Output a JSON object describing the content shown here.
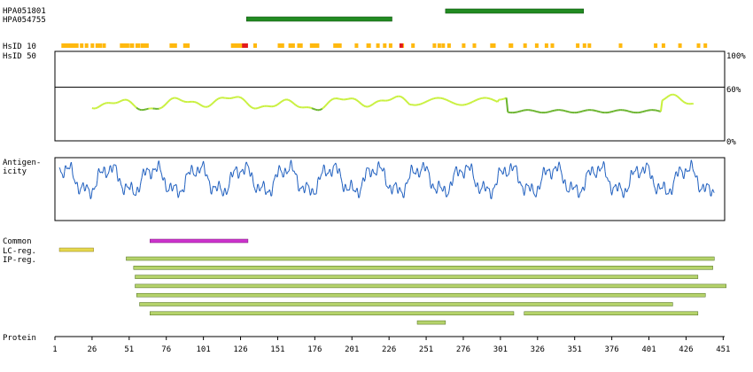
{
  "antibodies": [
    {
      "label": "HPA051801",
      "start": 264,
      "end": 357,
      "color": "#228b22"
    },
    {
      "label": "HPA054755",
      "start": 130,
      "end": 228,
      "color": "#228b22"
    }
  ],
  "hsid": {
    "label_10": "HsID 10",
    "label_50": "HsID 50",
    "ticks": [
      3,
      6,
      7,
      9,
      11,
      13,
      14,
      17,
      22,
      27,
      33,
      38,
      41,
      45,
      63,
      64,
      66,
      69,
      73,
      74,
      79,
      80,
      84,
      86,
      89,
      114,
      115,
      117,
      118,
      128,
      129,
      130,
      131,
      177,
      180,
      181,
      182,
      183,
      184,
      185,
      200,
      225,
      227,
      228,
      236,
      237,
      238,
      239,
      245,
      246,
      247,
      258,
      259,
      262,
      264,
      282,
      285,
      287,
      304,
      316,
      317,
      326,
      333,
      339,
      351,
      362,
      384,
      389,
      393,
      399,
      414,
      425,
      443,
      444,
      445,
      462,
      463,
      477,
      489,
      499,
      505,
      531,
      538,
      543,
      575,
      611,
      619,
      636,
      655,
      662
    ],
    "orange": "#ffb90f",
    "red": "#e31a1c",
    "red_ranges": [
      [
        127,
        131
      ],
      [
        233,
        235
      ]
    ]
  },
  "similarity": {
    "label_top": "100%",
    "label_mid": "60%",
    "label_bottom": "0%",
    "threshold_pct": 60,
    "range": [
      26,
      431
    ],
    "light_color": "#c8f03c",
    "dark_color": "#6ab42d"
  },
  "antigenicity": {
    "label_line1": "Antigen-",
    "label_line2": "icity",
    "line_color": "#1f5fbf",
    "low_color": "#8f95e6"
  },
  "features": {
    "common_label": "Common",
    "lc_label": "LC-reg.",
    "ip_label": "IP-reg.",
    "common_bar": {
      "start": 65,
      "end": 131,
      "color": "#cc33cc"
    },
    "lc_bar": {
      "start": 4,
      "end": 27,
      "color": "#e6d84c"
    },
    "ip_color": "#b5d36b",
    "ip_bars": [
      [
        {
          "start": 49,
          "end": 445
        }
      ],
      [
        {
          "start": 54,
          "end": 444
        }
      ],
      [
        {
          "start": 55,
          "end": 434
        }
      ],
      [
        {
          "start": 55,
          "end": 453
        }
      ],
      [
        {
          "start": 56,
          "end": 439
        }
      ],
      [
        {
          "start": 58,
          "end": 417
        }
      ],
      [
        {
          "start": 65,
          "end": 310
        },
        {
          "start": 317,
          "end": 434
        }
      ],
      [
        {
          "start": 245,
          "end": 264
        }
      ]
    ]
  },
  "protein_axis": {
    "label": "Protein",
    "length": 452,
    "ticks": [
      1,
      26,
      51,
      76,
      101,
      126,
      151,
      176,
      201,
      226,
      251,
      276,
      301,
      326,
      351,
      376,
      401,
      426,
      451
    ]
  }
}
